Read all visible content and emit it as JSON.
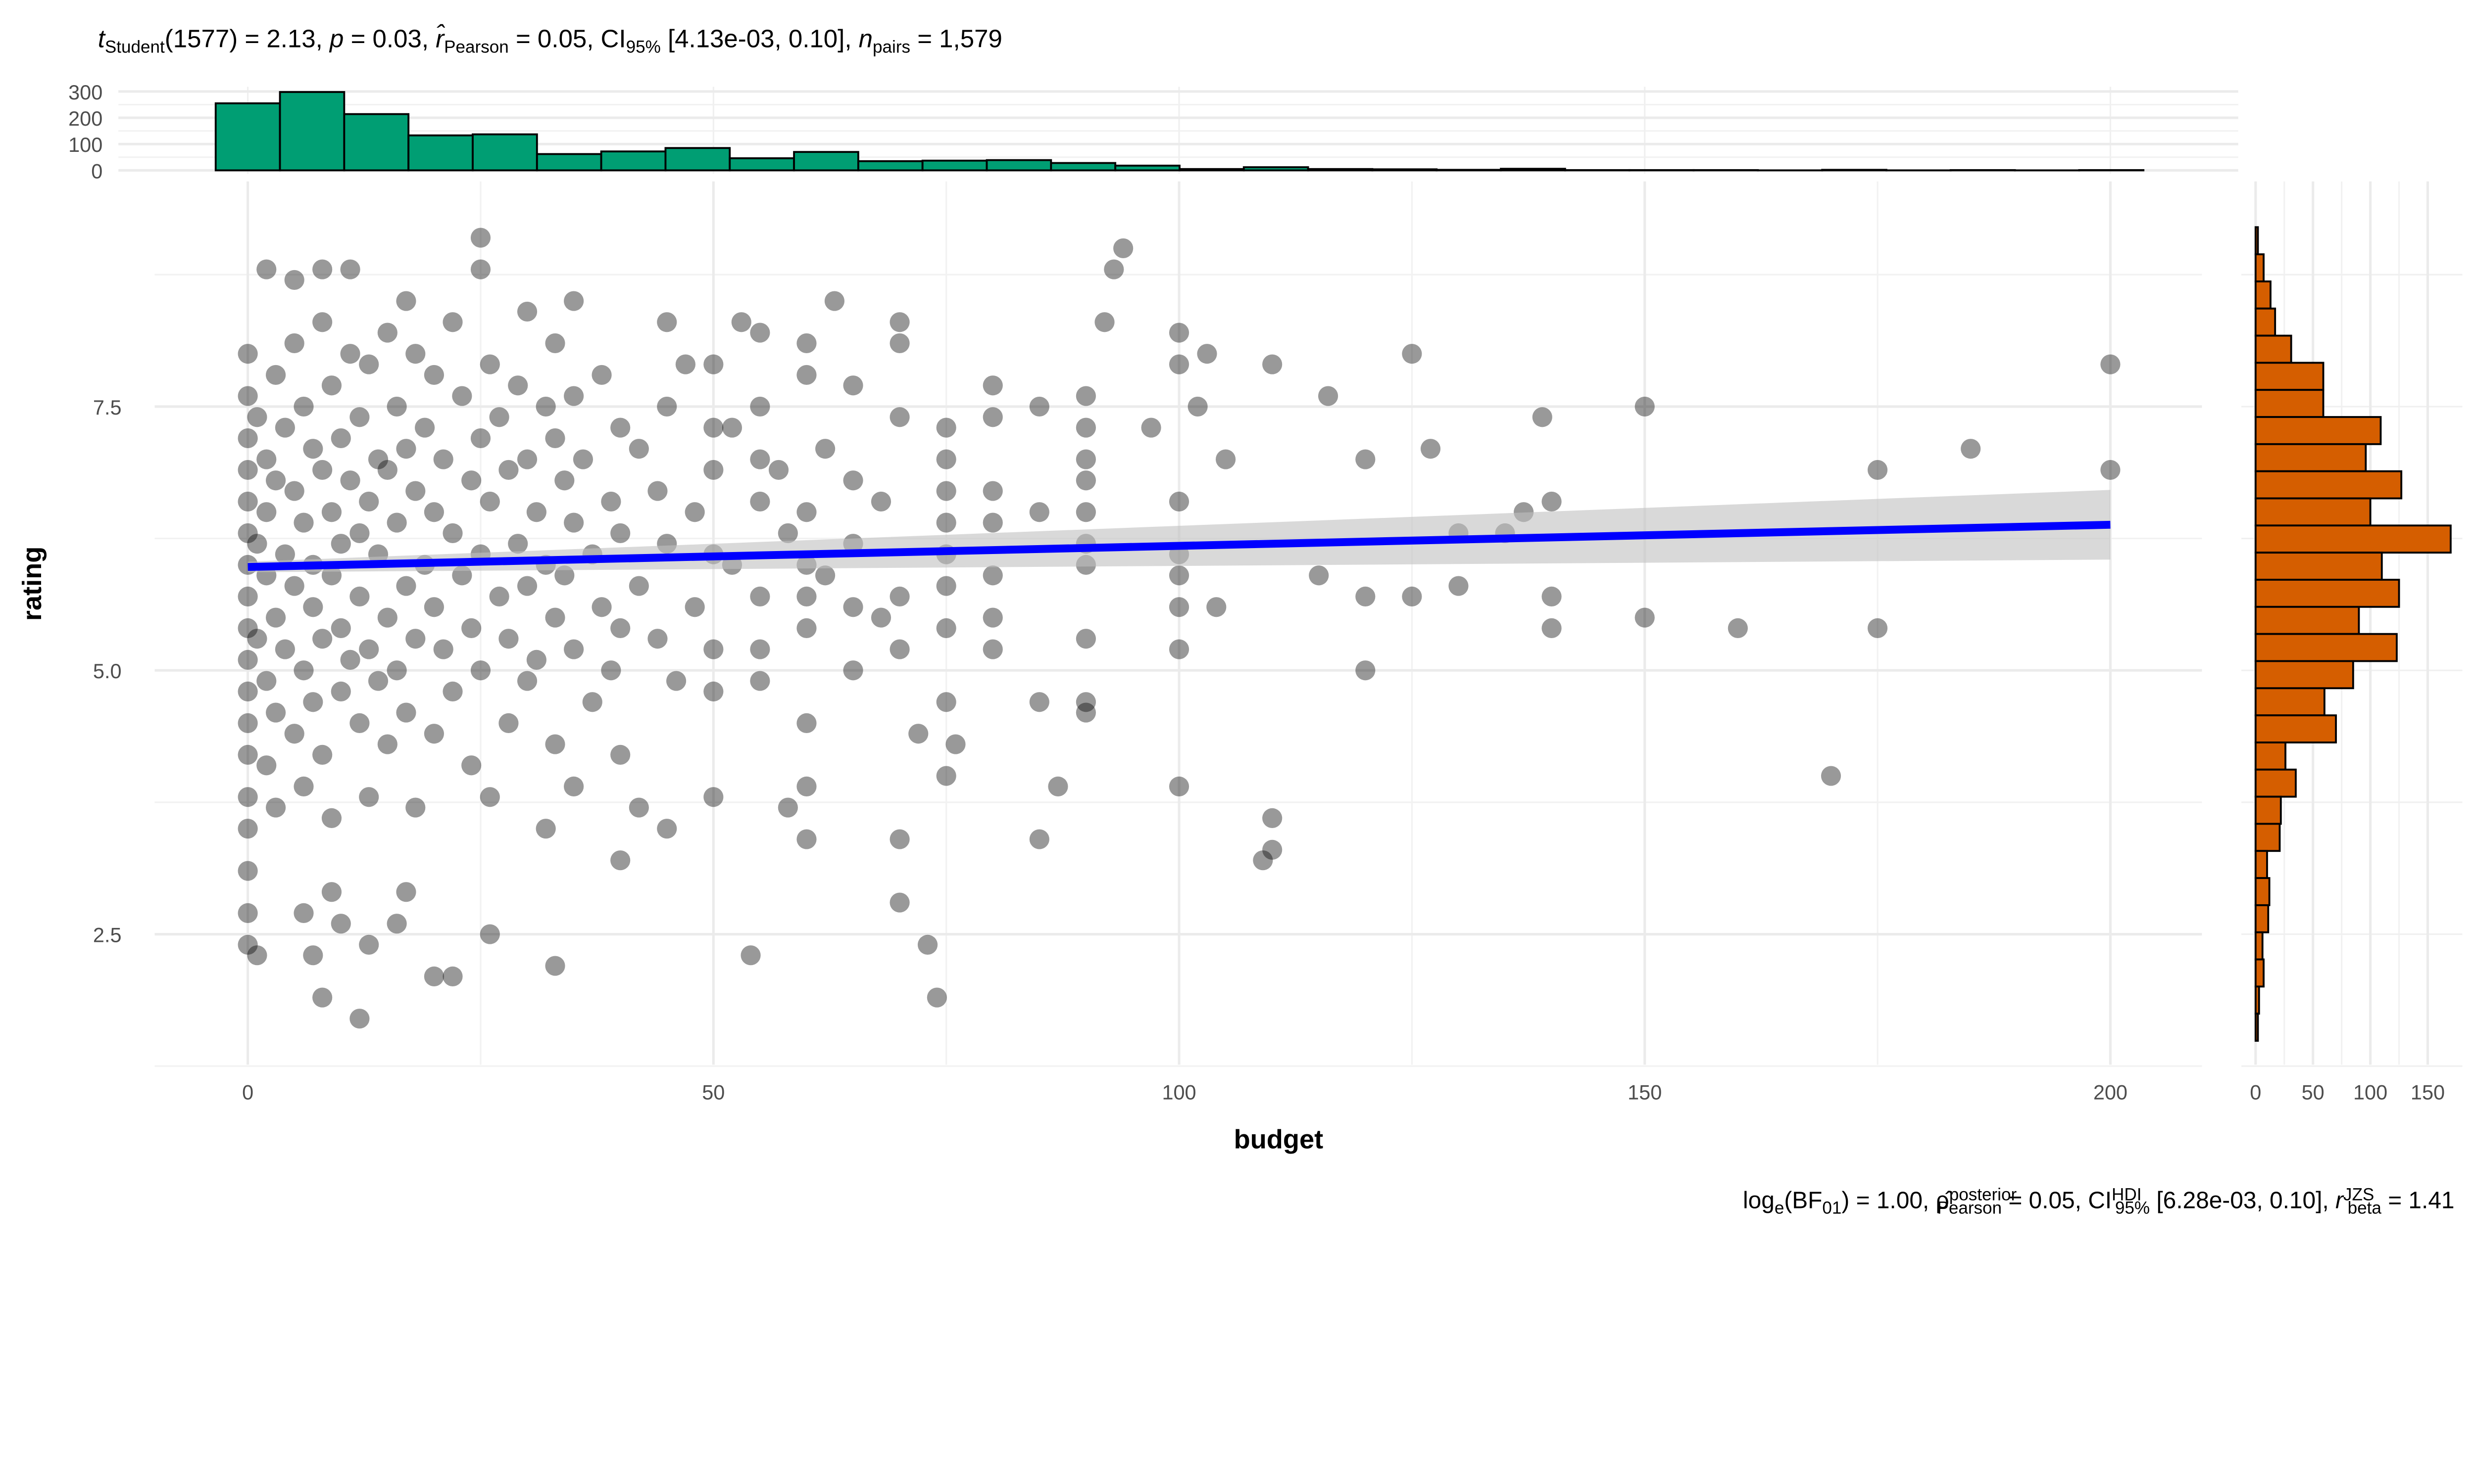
{
  "chart_data": {
    "type": "scatter",
    "title_parts": [
      {
        "t": "t",
        "s": "i"
      },
      {
        "t": "Student",
        "s": "sub"
      },
      {
        "t": "(1577) = 2.13, ",
        "s": "n"
      },
      {
        "t": "p",
        "s": "i"
      },
      {
        "t": " = 0.03, ",
        "s": "n"
      },
      {
        "t": "r̂",
        "s": "i"
      },
      {
        "t": "Pearson",
        "s": "sub"
      },
      {
        "t": " = 0.05, CI",
        "s": "n"
      },
      {
        "t": "95%",
        "s": "sub"
      },
      {
        "t": " [4.13e-03, 0.10], ",
        "s": "n"
      },
      {
        "t": "n",
        "s": "i"
      },
      {
        "t": "pairs",
        "s": "sub"
      },
      {
        "t": " = 1,579",
        "s": "n"
      }
    ],
    "caption_parts": [
      {
        "t": "log",
        "s": "n"
      },
      {
        "t": "e",
        "s": "sub"
      },
      {
        "t": "(BF",
        "s": "n"
      },
      {
        "t": "01",
        "s": "sub"
      },
      {
        "t": ") = 1.00, ",
        "s": "n"
      },
      {
        "t": "ρ̂",
        "s": "n"
      },
      {
        "t": "posterior",
        "s": "sup"
      },
      {
        "t": "Pearson",
        "s": "subb"
      },
      {
        "t": " = 0.05, CI",
        "s": "n"
      },
      {
        "t": "HDI",
        "s": "sup"
      },
      {
        "t": "95%",
        "s": "subb"
      },
      {
        "t": " [6.28e-03, 0.10], ",
        "s": "n"
      },
      {
        "t": "r",
        "s": "i"
      },
      {
        "t": "JZS",
        "s": "sup"
      },
      {
        "t": "beta",
        "s": "subb"
      },
      {
        "t": " = 1.41",
        "s": "n"
      }
    ],
    "xlabel": "budget",
    "ylabel": "rating",
    "xlim": [
      -10,
      210
    ],
    "ylim": [
      1.4,
      9.6
    ],
    "xticks": [
      "0",
      "50",
      "100",
      "150",
      "200"
    ],
    "xtick_values": [
      0,
      50,
      100,
      150,
      200
    ],
    "yticks": [
      "2.5",
      "5.0",
      "7.5"
    ],
    "ytick_values": [
      2.5,
      5.0,
      7.5
    ],
    "grid": true,
    "colors": {
      "points": "#000000",
      "line": "#0000ff",
      "band": "#bfbfbf",
      "top_hist": "#009e73",
      "right_hist": "#d55e00"
    },
    "regression": {
      "x": [
        0,
        200
      ],
      "y": [
        5.98,
        6.38
      ],
      "ci_lower": [
        5.93,
        6.05
      ],
      "ci_upper": [
        6.03,
        6.71
      ]
    },
    "points": [
      [
        200,
        7.9
      ],
      [
        200,
        6.9
      ],
      [
        185,
        7.1
      ],
      [
        175,
        6.9
      ],
      [
        175,
        5.4
      ],
      [
        160,
        5.4
      ],
      [
        170,
        4.0
      ],
      [
        150,
        7.5
      ],
      [
        150,
        5.5
      ],
      [
        139,
        7.4
      ],
      [
        140,
        5.4
      ],
      [
        140,
        6.6
      ],
      [
        140,
        5.7
      ],
      [
        137,
        6.5
      ],
      [
        135,
        6.3
      ],
      [
        130,
        5.8
      ],
      [
        130,
        6.3
      ],
      [
        127,
        7.1
      ],
      [
        125,
        5.7
      ],
      [
        120,
        7.0
      ],
      [
        120,
        5.7
      ],
      [
        120,
        5.0
      ],
      [
        125,
        8.0
      ],
      [
        116,
        7.6
      ],
      [
        115,
        5.9
      ],
      [
        110,
        7.9
      ],
      [
        110,
        3.6
      ],
      [
        110,
        3.3
      ],
      [
        109,
        3.2
      ],
      [
        105,
        7.0
      ],
      [
        104,
        5.6
      ],
      [
        103,
        8.0
      ],
      [
        102,
        7.5
      ],
      [
        100,
        8.2
      ],
      [
        100,
        7.9
      ],
      [
        100,
        6.6
      ],
      [
        100,
        6.1
      ],
      [
        100,
        5.9
      ],
      [
        100,
        5.6
      ],
      [
        100,
        5.2
      ],
      [
        100,
        3.9
      ],
      [
        97,
        7.3
      ],
      [
        94,
        9.0
      ],
      [
        93,
        8.8
      ],
      [
        92,
        8.3
      ],
      [
        90,
        7.6
      ],
      [
        90,
        7.3
      ],
      [
        90,
        7.0
      ],
      [
        90,
        6.8
      ],
      [
        90,
        6.5
      ],
      [
        90,
        6.2
      ],
      [
        90,
        6.0
      ],
      [
        90,
        5.3
      ],
      [
        90,
        4.7
      ],
      [
        90,
        4.6
      ],
      [
        87,
        3.9
      ],
      [
        85,
        6.5
      ],
      [
        85,
        3.4
      ],
      [
        85,
        7.5
      ],
      [
        85,
        4.7
      ],
      [
        80,
        7.7
      ],
      [
        80,
        6.7
      ],
      [
        80,
        6.4
      ],
      [
        80,
        5.9
      ],
      [
        80,
        5.5
      ],
      [
        80,
        5.2
      ],
      [
        80,
        7.4
      ],
      [
        76,
        4.3
      ],
      [
        75,
        7.3
      ],
      [
        75,
        7.0
      ],
      [
        75,
        6.7
      ],
      [
        75,
        6.4
      ],
      [
        75,
        6.1
      ],
      [
        75,
        5.8
      ],
      [
        75,
        5.4
      ],
      [
        75,
        4.7
      ],
      [
        75,
        4.0
      ],
      [
        74,
        1.9
      ],
      [
        73,
        2.4
      ],
      [
        70,
        2.8
      ],
      [
        70,
        3.4
      ],
      [
        70,
        8.3
      ],
      [
        70,
        8.1
      ],
      [
        70,
        7.4
      ],
      [
        70,
        5.7
      ],
      [
        70,
        5.2
      ],
      [
        72,
        4.4
      ],
      [
        65,
        7.7
      ],
      [
        65,
        6.8
      ],
      [
        65,
        6.2
      ],
      [
        65,
        5.6
      ],
      [
        63,
        8.5
      ],
      [
        60,
        8.1
      ],
      [
        60,
        7.8
      ],
      [
        60,
        6.5
      ],
      [
        60,
        6.0
      ],
      [
        60,
        5.7
      ],
      [
        60,
        5.4
      ],
      [
        60,
        3.9
      ],
      [
        60,
        3.4
      ],
      [
        60,
        4.5
      ],
      [
        58,
        3.7
      ],
      [
        55,
        8.2
      ],
      [
        55,
        7.5
      ],
      [
        55,
        7.0
      ],
      [
        55,
        5.7
      ],
      [
        55,
        4.9
      ],
      [
        54,
        2.3
      ],
      [
        53,
        8.3
      ],
      [
        50,
        4.8
      ],
      [
        50,
        3.8
      ],
      [
        50,
        6.1
      ],
      [
        50,
        7.3
      ],
      [
        50,
        7.9
      ],
      [
        45,
        8.3
      ],
      [
        45,
        3.5
      ],
      [
        42,
        3.7
      ],
      [
        40,
        3.2
      ],
      [
        35,
        8.5
      ],
      [
        33,
        2.2
      ],
      [
        32,
        3.5
      ],
      [
        33,
        8.1
      ],
      [
        25,
        9.1
      ],
      [
        25,
        8.8
      ],
      [
        26,
        2.5
      ],
      [
        22,
        2.1
      ],
      [
        20,
        2.1
      ],
      [
        17,
        8.5
      ],
      [
        12,
        1.7
      ],
      [
        8,
        1.9
      ],
      [
        7,
        2.3
      ],
      [
        1,
        2.3
      ],
      [
        0,
        2.4
      ],
      [
        9,
        2.9
      ],
      [
        6,
        2.7
      ],
      [
        10,
        2.6
      ],
      [
        13,
        2.4
      ],
      [
        16,
        2.6
      ],
      [
        17,
        2.9
      ],
      [
        0,
        2.7
      ],
      [
        0,
        3.1
      ],
      [
        2,
        8.8
      ],
      [
        8,
        8.8
      ],
      [
        11,
        8.8
      ],
      [
        5,
        8.7
      ],
      [
        0,
        7.6
      ],
      [
        0,
        7.2
      ],
      [
        0,
        6.9
      ],
      [
        0,
        6.6
      ],
      [
        0,
        6.3
      ],
      [
        0,
        6.0
      ],
      [
        0,
        5.7
      ],
      [
        0,
        5.4
      ],
      [
        0,
        5.1
      ],
      [
        0,
        4.8
      ],
      [
        0,
        4.5
      ],
      [
        0,
        4.2
      ],
      [
        0,
        3.8
      ],
      [
        0,
        3.5
      ],
      [
        0,
        8.0
      ],
      [
        1,
        7.4
      ],
      [
        1,
        6.2
      ],
      [
        1,
        5.3
      ],
      [
        2,
        7.0
      ],
      [
        2,
        6.5
      ],
      [
        2,
        5.9
      ],
      [
        2,
        4.9
      ],
      [
        2,
        4.1
      ],
      [
        3,
        7.8
      ],
      [
        3,
        6.8
      ],
      [
        3,
        5.5
      ],
      [
        3,
        4.6
      ],
      [
        3,
        3.7
      ],
      [
        4,
        7.3
      ],
      [
        4,
        6.1
      ],
      [
        4,
        5.2
      ],
      [
        5,
        8.1
      ],
      [
        5,
        6.7
      ],
      [
        5,
        5.8
      ],
      [
        5,
        4.4
      ],
      [
        6,
        7.5
      ],
      [
        6,
        6.4
      ],
      [
        6,
        5.0
      ],
      [
        6,
        3.9
      ],
      [
        7,
        7.1
      ],
      [
        7,
        6.0
      ],
      [
        7,
        5.6
      ],
      [
        7,
        4.7
      ],
      [
        8,
        8.3
      ],
      [
        8,
        6.9
      ],
      [
        8,
        5.3
      ],
      [
        8,
        4.2
      ],
      [
        9,
        7.7
      ],
      [
        9,
        6.5
      ],
      [
        9,
        5.9
      ],
      [
        9,
        3.6
      ],
      [
        10,
        7.2
      ],
      [
        10,
        6.2
      ],
      [
        10,
        5.4
      ],
      [
        10,
        4.8
      ],
      [
        11,
        8.0
      ],
      [
        11,
        6.8
      ],
      [
        11,
        5.1
      ],
      [
        12,
        7.4
      ],
      [
        12,
        6.3
      ],
      [
        12,
        5.7
      ],
      [
        12,
        4.5
      ],
      [
        13,
        7.9
      ],
      [
        13,
        6.6
      ],
      [
        13,
        5.2
      ],
      [
        13,
        3.8
      ],
      [
        14,
        7.0
      ],
      [
        14,
        6.1
      ],
      [
        14,
        4.9
      ],
      [
        15,
        8.2
      ],
      [
        15,
        6.9
      ],
      [
        15,
        5.5
      ],
      [
        15,
        4.3
      ],
      [
        16,
        7.5
      ],
      [
        16,
        6.4
      ],
      [
        16,
        5.0
      ],
      [
        17,
        7.1
      ],
      [
        17,
        5.8
      ],
      [
        17,
        4.6
      ],
      [
        18,
        8.0
      ],
      [
        18,
        6.7
      ],
      [
        18,
        5.3
      ],
      [
        18,
        3.7
      ],
      [
        19,
        7.3
      ],
      [
        19,
        6.0
      ],
      [
        20,
        7.8
      ],
      [
        20,
        6.5
      ],
      [
        20,
        5.6
      ],
      [
        20,
        4.4
      ],
      [
        21,
        7.0
      ],
      [
        21,
        5.2
      ],
      [
        22,
        8.3
      ],
      [
        22,
        6.3
      ],
      [
        22,
        4.8
      ],
      [
        23,
        7.6
      ],
      [
        23,
        5.9
      ],
      [
        24,
        6.8
      ],
      [
        24,
        5.4
      ],
      [
        24,
        4.1
      ],
      [
        25,
        7.2
      ],
      [
        25,
        6.1
      ],
      [
        25,
        5.0
      ],
      [
        26,
        7.9
      ],
      [
        26,
        6.6
      ],
      [
        26,
        3.8
      ],
      [
        27,
        7.4
      ],
      [
        27,
        5.7
      ],
      [
        28,
        6.9
      ],
      [
        28,
        5.3
      ],
      [
        28,
        4.5
      ],
      [
        29,
        7.7
      ],
      [
        29,
        6.2
      ],
      [
        30,
        8.4
      ],
      [
        30,
        7.0
      ],
      [
        30,
        5.8
      ],
      [
        30,
        4.9
      ],
      [
        31,
        6.5
      ],
      [
        31,
        5.1
      ],
      [
        32,
        7.5
      ],
      [
        32,
        6.0
      ],
      [
        33,
        7.2
      ],
      [
        33,
        5.5
      ],
      [
        33,
        4.3
      ],
      [
        34,
        6.8
      ],
      [
        34,
        5.9
      ],
      [
        35,
        7.6
      ],
      [
        35,
        6.4
      ],
      [
        35,
        5.2
      ],
      [
        35,
        3.9
      ],
      [
        36,
        7.0
      ],
      [
        37,
        6.1
      ],
      [
        37,
        4.7
      ],
      [
        38,
        7.8
      ],
      [
        38,
        5.6
      ],
      [
        39,
        6.6
      ],
      [
        39,
        5.0
      ],
      [
        40,
        7.3
      ],
      [
        40,
        6.3
      ],
      [
        40,
        5.4
      ],
      [
        40,
        4.2
      ],
      [
        42,
        7.1
      ],
      [
        42,
        5.8
      ],
      [
        44,
        6.7
      ],
      [
        44,
        5.3
      ],
      [
        45,
        7.5
      ],
      [
        45,
        6.2
      ],
      [
        46,
        4.9
      ],
      [
        47,
        7.9
      ],
      [
        48,
        6.5
      ],
      [
        48,
        5.6
      ],
      [
        50,
        6.9
      ],
      [
        50,
        5.2
      ],
      [
        52,
        7.3
      ],
      [
        52,
        6.0
      ],
      [
        55,
        6.6
      ],
      [
        55,
        5.2
      ],
      [
        57,
        6.9
      ],
      [
        58,
        6.3
      ],
      [
        62,
        7.1
      ],
      [
        62,
        5.9
      ],
      [
        65,
        5.0
      ],
      [
        68,
        6.6
      ],
      [
        68,
        5.5
      ]
    ],
    "top_histogram": {
      "variable": "budget",
      "bin_width": 6.9,
      "bin_centers_start": 0,
      "counts": [
        255,
        298,
        214,
        133,
        137,
        62,
        72,
        85,
        46,
        70,
        35,
        37,
        39,
        28,
        18,
        5,
        12,
        5,
        4,
        2,
        6,
        1,
        1,
        1,
        0,
        2,
        0,
        1,
        0,
        1
      ],
      "yticks": [
        "300",
        "200",
        "100",
        "0"
      ],
      "ytick_values": [
        300,
        200,
        100,
        0
      ]
    },
    "right_histogram": {
      "variable": "rating",
      "bin_width": 0.257,
      "top_edge": 9.2,
      "counts_top_to_bottom": [
        2,
        7,
        13,
        17,
        31,
        59,
        59,
        109,
        96,
        127,
        100,
        170,
        110,
        125,
        90,
        123,
        85,
        60,
        70,
        26,
        35,
        22,
        21,
        10,
        12,
        11,
        6,
        7,
        3,
        2
      ],
      "xticks": [
        "0",
        "50",
        "100",
        "150"
      ],
      "xtick_values": [
        0,
        50,
        100,
        150
      ]
    }
  }
}
